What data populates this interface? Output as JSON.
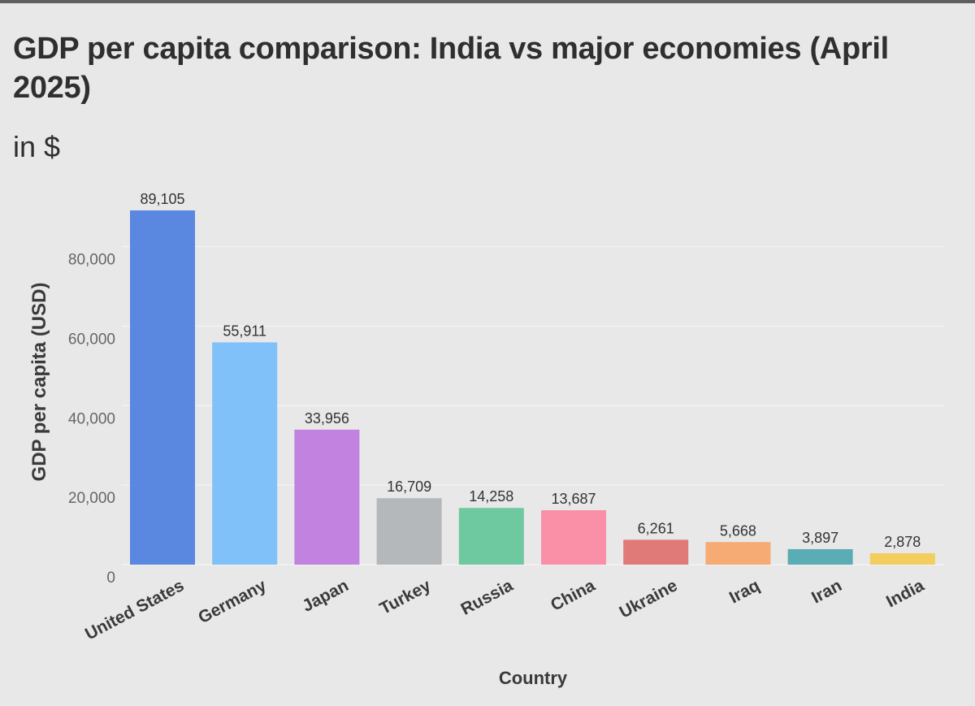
{
  "chart_data": {
    "type": "bar",
    "title": "GDP per capita comparison: India vs major economies (April 2025)",
    "subtitle": "in $",
    "xlabel": "Country",
    "ylabel": "GDP per capita (USD)",
    "ylim": [
      0,
      95000
    ],
    "yticks": [
      0,
      20000,
      40000,
      60000,
      80000
    ],
    "ytick_labels": [
      "0",
      "20,000",
      "40,000",
      "60,000",
      "80,000"
    ],
    "grid": true,
    "categories": [
      "United States",
      "Germany",
      "Japan",
      "Turkey",
      "Russia",
      "China",
      "Ukraine",
      "Iraq",
      "Iran",
      "India"
    ],
    "values": [
      89105,
      55911,
      33956,
      16709,
      14258,
      13687,
      6261,
      5668,
      3897,
      2878
    ],
    "data_labels": [
      "89,105",
      "55,911",
      "33,956",
      "16,709",
      "14,258",
      "13,687",
      "6,261",
      "5,668",
      "3,897",
      "2,878"
    ],
    "colors": [
      "#5a87e0",
      "#80c1fa",
      "#c182e0",
      "#b4b8bb",
      "#6fc9a0",
      "#f990a8",
      "#e07a78",
      "#f6aa74",
      "#5aacb5",
      "#f3cd5e"
    ]
  }
}
